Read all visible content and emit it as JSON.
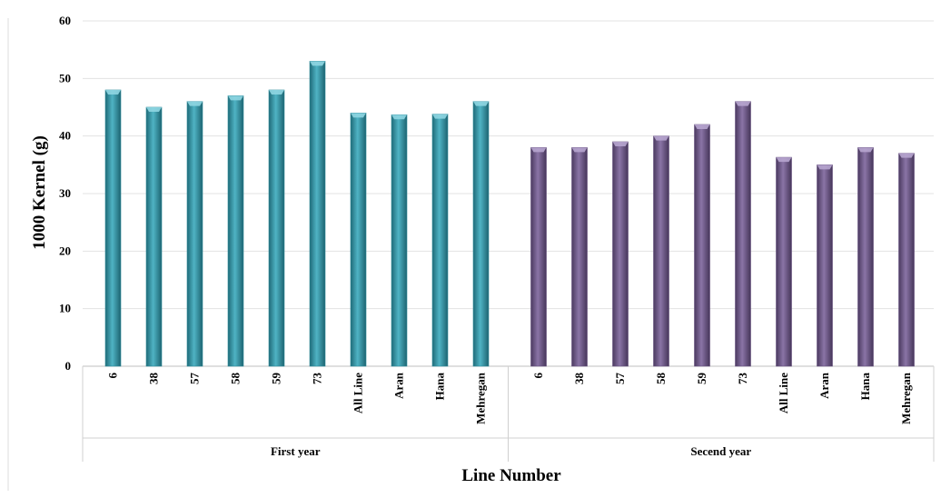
{
  "chart_data": {
    "type": "bar",
    "xlabel": "Line Number",
    "ylabel": "1000 Kernel (g)",
    "ylim": [
      0,
      60
    ],
    "yticks": [
      0,
      10,
      20,
      30,
      40,
      50,
      60
    ],
    "grid": true,
    "legend": "none",
    "groups": [
      {
        "name": "First year",
        "color": "#2f8a9a",
        "categories": [
          "6",
          "38",
          "57",
          "58",
          "59",
          "73",
          "All Line",
          "Aran",
          "Hana",
          "Mehregan"
        ],
        "values": [
          48,
          45,
          46,
          47,
          48,
          53,
          44,
          43.7,
          43.8,
          46
        ]
      },
      {
        "name": "Secend year",
        "color": "#66507e",
        "categories": [
          "6",
          "38",
          "57",
          "58",
          "59",
          "73",
          "All Line",
          "Aran",
          "Hana",
          "Mehregan"
        ],
        "values": [
          38,
          38,
          39,
          40,
          42,
          46,
          36.3,
          35,
          38,
          37
        ]
      }
    ]
  }
}
